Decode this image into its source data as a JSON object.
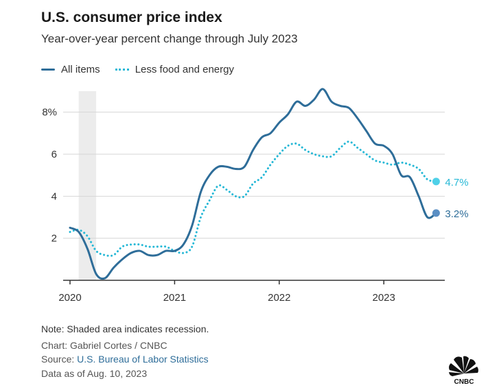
{
  "header": {
    "title": "U.S. consumer price index",
    "subtitle": "Year-over-year percent change through July 2023"
  },
  "legend": {
    "all_items": "All items",
    "core": "Less food and energy"
  },
  "footer": {
    "note": "Note: Shaded area indicates recession.",
    "credit": "Chart: Gabriel Cortes / CNBC",
    "source_prefix": "Source: ",
    "source_link": "U.S. Bureau of Labor Statistics",
    "as_of": "Data as of Aug. 10, 2023"
  },
  "logo": {
    "icon": "cnbc-peacock-icon",
    "text": "CNBC"
  },
  "colors": {
    "all_items": "#2e6d99",
    "core": "#25b8d6",
    "recession": "#ececec",
    "grid": "#d6d6d6",
    "axis": "#333333"
  },
  "chart_data": {
    "type": "line",
    "x_unit": "months since Jan 2020",
    "xlim": [
      "2020-01",
      "2023-08"
    ],
    "ylim": [
      0,
      9
    ],
    "y_ticks": [
      {
        "value": 2,
        "label": "2"
      },
      {
        "value": 4,
        "label": "4"
      },
      {
        "value": 6,
        "label": "6"
      },
      {
        "value": 8,
        "label": "8%"
      }
    ],
    "x_ticks": [
      {
        "value": "2020-01",
        "label": "2020"
      },
      {
        "value": "2021-01",
        "label": "2021"
      },
      {
        "value": "2022-01",
        "label": "2022"
      },
      {
        "value": "2023-01",
        "label": "2023"
      }
    ],
    "recession": [
      "2020-02",
      "2020-04"
    ],
    "grid": true,
    "legend_position": "top-left",
    "months": [
      "2020-01",
      "2020-02",
      "2020-03",
      "2020-04",
      "2020-05",
      "2020-06",
      "2020-07",
      "2020-08",
      "2020-09",
      "2020-10",
      "2020-11",
      "2020-12",
      "2021-01",
      "2021-02",
      "2021-03",
      "2021-04",
      "2021-05",
      "2021-06",
      "2021-07",
      "2021-08",
      "2021-09",
      "2021-10",
      "2021-11",
      "2021-12",
      "2022-01",
      "2022-02",
      "2022-03",
      "2022-04",
      "2022-05",
      "2022-06",
      "2022-07",
      "2022-08",
      "2022-09",
      "2022-10",
      "2022-11",
      "2022-12",
      "2023-01",
      "2023-02",
      "2023-03",
      "2023-04",
      "2023-05",
      "2023-06",
      "2023-07"
    ],
    "series": [
      {
        "name": "All items",
        "key": "all_items",
        "style": "solid",
        "end_label": "3.2%",
        "values": [
          2.5,
          2.3,
          1.5,
          0.3,
          0.1,
          0.6,
          1.0,
          1.3,
          1.4,
          1.2,
          1.2,
          1.4,
          1.4,
          1.7,
          2.6,
          4.2,
          5.0,
          5.4,
          5.4,
          5.3,
          5.4,
          6.2,
          6.8,
          7.0,
          7.5,
          7.9,
          8.5,
          8.3,
          8.6,
          9.1,
          8.5,
          8.3,
          8.2,
          7.7,
          7.1,
          6.5,
          6.4,
          6.0,
          5.0,
          4.9,
          4.0,
          3.0,
          3.2
        ]
      },
      {
        "name": "Less food and energy",
        "key": "core",
        "style": "dotted",
        "end_label": "4.7%",
        "values": [
          2.3,
          2.4,
          2.1,
          1.4,
          1.2,
          1.2,
          1.6,
          1.7,
          1.7,
          1.6,
          1.6,
          1.6,
          1.4,
          1.3,
          1.6,
          3.0,
          3.8,
          4.5,
          4.3,
          4.0,
          4.0,
          4.6,
          4.9,
          5.5,
          6.0,
          6.4,
          6.5,
          6.2,
          6.0,
          5.9,
          5.9,
          6.3,
          6.6,
          6.3,
          6.0,
          5.7,
          5.6,
          5.5,
          5.6,
          5.5,
          5.3,
          4.8,
          4.7
        ]
      }
    ]
  }
}
